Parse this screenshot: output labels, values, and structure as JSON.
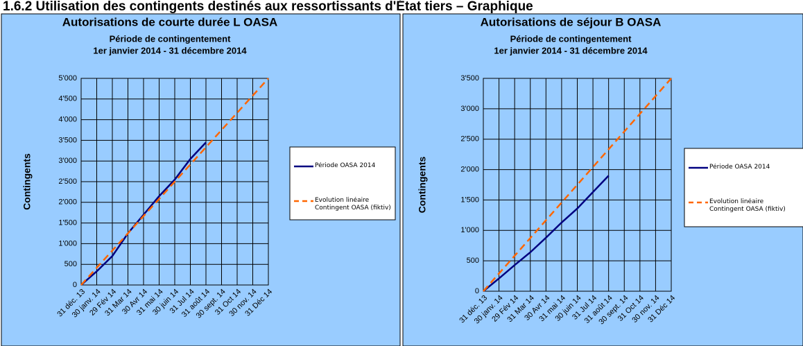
{
  "heading": "1.6.2 Utilisation des contingents destinés aux ressortissants d'État tiers – Graphique",
  "chart_data": [
    {
      "type": "line",
      "title": "Autorisations de courte durée L OASA",
      "subtitle": [
        "Période de contingentement",
        "1er janvier 2014 - 31 décembre 2014"
      ],
      "y_label": "Contingents",
      "categories": [
        "31 déc. 13",
        "30 janv. 14",
        "29 Fév 14",
        "31 Mar 14",
        "30 Avr 14",
        "31 mai 14",
        "30 juin 14",
        "31 Jul 14",
        "31 août 14",
        "30 sept. 14",
        "31 Oct 14",
        "30 nov. 14",
        "31 Déc 14"
      ],
      "series": [
        {
          "name": "Période OASA 2014",
          "color": "#000080",
          "dashed": false,
          "values": [
            0,
            330,
            700,
            1250,
            1700,
            2150,
            2550,
            3050,
            3450,
            null,
            null,
            null,
            null
          ]
        },
        {
          "name": "Evolution linéaire Contingent OASA (fiktiv)",
          "color": "#ff6600",
          "dashed": true,
          "values": [
            0,
            417,
            833,
            1250,
            1667,
            2083,
            2500,
            2917,
            3333,
            3750,
            4167,
            4583,
            5000
          ]
        }
      ],
      "ylim": [
        0,
        5000
      ],
      "yticks": [
        0,
        500,
        {
          "value": 1000,
          "label": "1'000"
        },
        {
          "value": 1500,
          "label": "1'500"
        },
        {
          "value": 2000,
          "label": "2'000"
        },
        {
          "value": 2500,
          "label": "2'500"
        },
        {
          "value": 3000,
          "label": "3'000"
        },
        {
          "value": 3500,
          "label": "3'500"
        },
        {
          "value": 4000,
          "label": "4'000"
        },
        {
          "value": 4500,
          "label": "4'500"
        },
        {
          "value": 5000,
          "label": "5'000"
        }
      ],
      "grid": true,
      "legend_position": "right"
    },
    {
      "type": "line",
      "title": "Autorisations de séjour B OASA",
      "subtitle": [
        "Période de contingentement",
        "1er janvier 2014 - 31 décembre 2014"
      ],
      "y_label": "Contingents",
      "categories": [
        "31 déc. 13",
        "30 janv. 14",
        "29 Fév 14",
        "31 Mar 14",
        "30 Avr 14",
        "31 mai 14",
        "30 juin 14",
        "31 Jul 14",
        "31 août 14",
        "30 sept. 14",
        "31 Oct 14",
        "30 nov. 14",
        "31 Déc 14"
      ],
      "series": [
        {
          "name": "Période OASA 2014",
          "color": "#000080",
          "dashed": false,
          "values": [
            0,
            210,
            430,
            640,
            880,
            1130,
            1360,
            1630,
            1900,
            null,
            null,
            null,
            null
          ]
        },
        {
          "name": "Evolution linéaire Contingent OASA (fiktiv)",
          "color": "#ff6600",
          "dashed": true,
          "values": [
            0,
            292,
            583,
            875,
            1167,
            1458,
            1750,
            2042,
            2333,
            2625,
            2917,
            3208,
            3500
          ]
        }
      ],
      "ylim": [
        0,
        3500
      ],
      "yticks": [
        0,
        500,
        {
          "value": 1000,
          "label": "1'000"
        },
        {
          "value": 1500,
          "label": "1'500"
        },
        {
          "value": 2000,
          "label": "2'000"
        },
        {
          "value": 2500,
          "label": "2'500"
        },
        {
          "value": 3000,
          "label": "3'000"
        },
        {
          "value": 3500,
          "label": "3'500"
        }
      ],
      "grid": true,
      "legend_position": "right"
    }
  ]
}
